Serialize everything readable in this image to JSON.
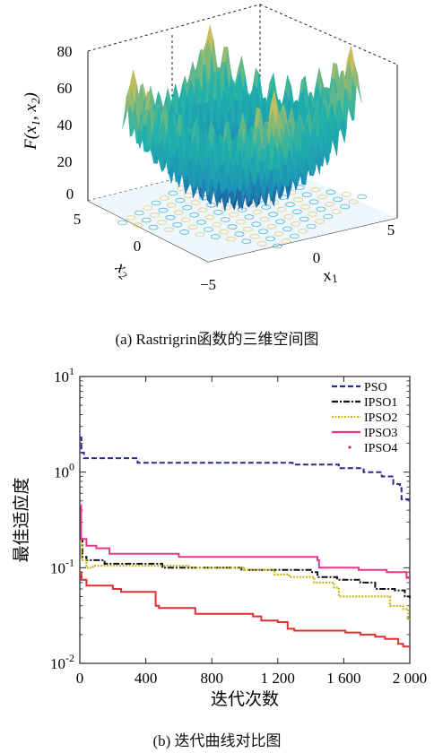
{
  "chart_data": [
    {
      "type": "surface3d",
      "caption": "(a) Rastrigrin函数的三维空间图",
      "function": "Rastrigin",
      "zlabel": "F(x1, x2)",
      "xlabel": "x1",
      "ylabel": "x2",
      "xlim": [
        -5,
        5
      ],
      "ylim": [
        -5,
        5
      ],
      "zlim": [
        0,
        80
      ],
      "z_ticks": [
        "80",
        "60",
        "40",
        "20",
        "0"
      ],
      "x_ticks": [
        "0",
        "5"
      ],
      "y_ticks": [
        "5",
        "0",
        "−5"
      ],
      "colormap": [
        "#1e3a8a",
        "#1d8fb8",
        "#20b2aa",
        "#f5c242"
      ],
      "contour_floor": true
    },
    {
      "type": "line",
      "caption": "(b) 迭代曲线对比图",
      "xlabel": "迭代次数",
      "ylabel": "最佳适应度",
      "xlim": [
        0,
        2000
      ],
      "ylim": [
        0.01,
        10
      ],
      "yscale": "log",
      "x_ticks": [
        "0",
        "400",
        "800",
        "1 200",
        "1 600",
        "2 000"
      ],
      "y_ticks": [
        "10^1",
        "10^0",
        "10^-1",
        "10^-2"
      ],
      "legend_position": "top-right",
      "series": [
        {
          "name": "PSO",
          "color": "#2a2a8c",
          "style": "dashed",
          "points": [
            [
              0,
              2.3
            ],
            [
              10,
              1.6
            ],
            [
              25,
              1.4
            ],
            [
              340,
              1.4
            ],
            [
              350,
              1.25
            ],
            [
              1280,
              1.25
            ],
            [
              1290,
              1.2
            ],
            [
              1560,
              1.2
            ],
            [
              1570,
              1.1
            ],
            [
              1720,
              1.0
            ],
            [
              1830,
              0.9
            ],
            [
              1900,
              0.75
            ],
            [
              1940,
              0.68
            ],
            [
              1950,
              0.52
            ],
            [
              2000,
              0.52
            ]
          ]
        },
        {
          "name": "IPSO1",
          "color": "#111111",
          "style": "dashdot",
          "points": [
            [
              0,
              0.2
            ],
            [
              15,
              0.13
            ],
            [
              40,
              0.12
            ],
            [
              150,
              0.11
            ],
            [
              420,
              0.11
            ],
            [
              500,
              0.1
            ],
            [
              900,
              0.1
            ],
            [
              980,
              0.095
            ],
            [
              1400,
              0.09
            ],
            [
              1440,
              0.08
            ],
            [
              1560,
              0.075
            ],
            [
              1700,
              0.07
            ],
            [
              1790,
              0.06
            ],
            [
              1910,
              0.058
            ],
            [
              1970,
              0.05
            ],
            [
              2000,
              0.048
            ]
          ]
        },
        {
          "name": "IPSO2",
          "color": "#c9b820",
          "style": "dotted",
          "points": [
            [
              0,
              0.18
            ],
            [
              10,
              0.12
            ],
            [
              40,
              0.1
            ],
            [
              80,
              0.105
            ],
            [
              650,
              0.105
            ],
            [
              660,
              0.1
            ],
            [
              950,
              0.1
            ],
            [
              1000,
              0.095
            ],
            [
              1180,
              0.085
            ],
            [
              1270,
              0.08
            ],
            [
              1420,
              0.07
            ],
            [
              1540,
              0.062
            ],
            [
              1570,
              0.05
            ],
            [
              1800,
              0.05
            ],
            [
              1880,
              0.04
            ],
            [
              1960,
              0.037
            ],
            [
              1990,
              0.029
            ],
            [
              2000,
              0.028
            ]
          ]
        },
        {
          "name": "IPSO3",
          "color": "#e0388c",
          "style": "solid",
          "points": [
            [
              0,
              0.45
            ],
            [
              8,
              0.2
            ],
            [
              40,
              0.17
            ],
            [
              100,
              0.16
            ],
            [
              180,
              0.14
            ],
            [
              560,
              0.14
            ],
            [
              600,
              0.13
            ],
            [
              1440,
              0.12
            ],
            [
              1450,
              0.1
            ],
            [
              1690,
              0.095
            ],
            [
              1860,
              0.09
            ],
            [
              1980,
              0.078
            ],
            [
              2000,
              0.077
            ]
          ]
        },
        {
          "name": "IPSO4",
          "color": "#e03030",
          "style": "solid",
          "points": [
            [
              0,
              0.09
            ],
            [
              10,
              0.075
            ],
            [
              40,
              0.065
            ],
            [
              200,
              0.06
            ],
            [
              250,
              0.056
            ],
            [
              440,
              0.056
            ],
            [
              460,
              0.04
            ],
            [
              480,
              0.038
            ],
            [
              690,
              0.038
            ],
            [
              700,
              0.033
            ],
            [
              1050,
              0.031
            ],
            [
              1100,
              0.028
            ],
            [
              1200,
              0.027
            ],
            [
              1260,
              0.023
            ],
            [
              1300,
              0.022
            ],
            [
              1610,
              0.021
            ],
            [
              1700,
              0.02
            ],
            [
              1790,
              0.019
            ],
            [
              1850,
              0.018
            ],
            [
              1930,
              0.016
            ],
            [
              1960,
              0.015
            ],
            [
              2000,
              0.015
            ]
          ]
        }
      ]
    }
  ]
}
